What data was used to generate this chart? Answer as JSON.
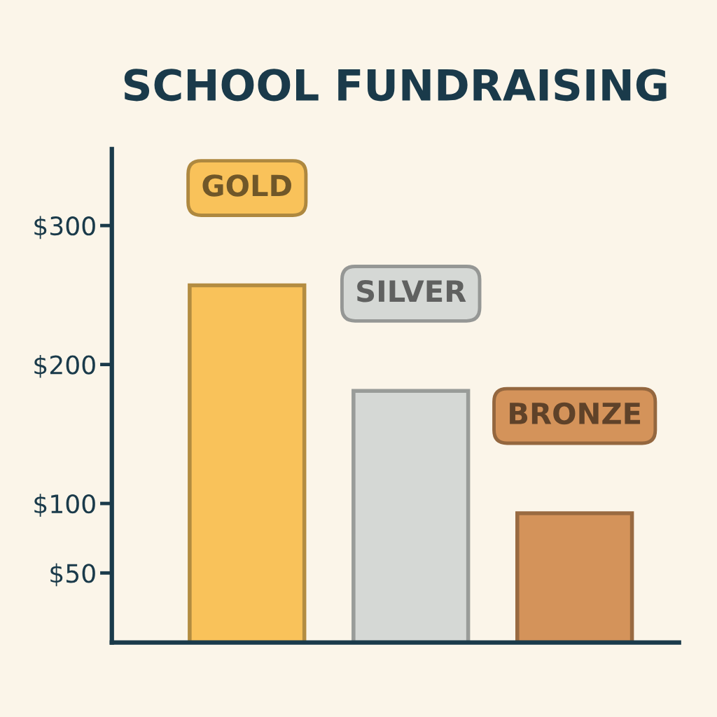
{
  "chart_data": {
    "type": "bar",
    "title": "SCHOOL FUNDRAISING",
    "categories": [
      "GOLD",
      "SILVER",
      "BRONZE"
    ],
    "values": [
      257,
      181,
      93
    ],
    "colors": [
      "#f9c25a",
      "#d5d8d5",
      "#d4935a"
    ],
    "ylim": [
      0,
      355
    ],
    "yticks": [
      {
        "value": 50,
        "label": "$50"
      },
      {
        "value": 100,
        "label": "$100"
      },
      {
        "value": 200,
        "label": "$200"
      },
      {
        "value": 300,
        "label": "$300"
      }
    ],
    "grid": false,
    "legend": false
  }
}
